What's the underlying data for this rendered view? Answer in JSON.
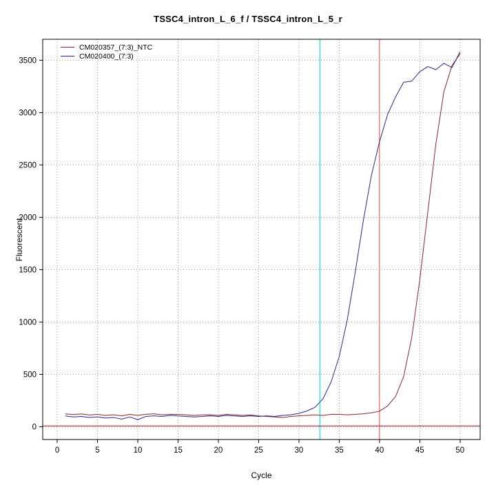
{
  "chart_data": {
    "type": "line",
    "title": "TSSC4_intron_L_6_f / TSSC4_intron_L_5_r",
    "xlabel": "Cycle",
    "ylabel": "Fluorescent",
    "xlim": [
      -1.8,
      52.5
    ],
    "ylim": [
      -120,
      3700
    ],
    "xticks": [
      0,
      5,
      10,
      15,
      20,
      25,
      30,
      35,
      40,
      45,
      50
    ],
    "yticks": [
      0,
      500,
      1000,
      1500,
      2000,
      2500,
      3000,
      3500
    ],
    "grid": true,
    "legend_position": "top-left",
    "x": [
      1,
      2,
      3,
      4,
      5,
      6,
      7,
      8,
      9,
      10,
      11,
      12,
      13,
      14,
      15,
      16,
      17,
      18,
      19,
      20,
      21,
      22,
      23,
      24,
      25,
      26,
      27,
      28,
      29,
      30,
      31,
      32,
      33,
      34,
      35,
      36,
      37,
      38,
      39,
      40,
      41,
      42,
      43,
      44,
      45,
      46,
      47,
      48,
      49,
      50
    ],
    "series": [
      {
        "name": "CM020357_(7:3)_NTC",
        "color": "#8b2323",
        "values": [
          125,
          118,
          124,
          114,
          120,
          110,
          116,
          106,
          120,
          110,
          121,
          126,
          116,
          120,
          120,
          115,
          110,
          115,
          116,
          110,
          120,
          116,
          110,
          114,
          105,
          100,
          95,
          90,
          100,
          106,
          110,
          115,
          110,
          120,
          120,
          116,
          120,
          126,
          135,
          150,
          200,
          290,
          480,
          850,
          1400,
          2050,
          2700,
          3200,
          3450,
          3560
        ]
      },
      {
        "name": "CM020400_(7:3)",
        "color": "#27278b",
        "values": [
          105,
          95,
          100,
          90,
          96,
          85,
          90,
          75,
          95,
          70,
          100,
          106,
          100,
          110,
          105,
          100,
          95,
          100,
          106,
          100,
          110,
          105,
          100,
          106,
          100,
          105,
          100,
          110,
          116,
          130,
          152,
          188,
          270,
          430,
          670,
          1020,
          1480,
          1970,
          2400,
          2720,
          2980,
          3150,
          3290,
          3300,
          3390,
          3440,
          3410,
          3470,
          3430,
          3580
        ]
      }
    ],
    "vlines": [
      {
        "x": 32.6,
        "color": "#00e5ee"
      },
      {
        "x": 40.0,
        "color": "#ff5a5a"
      }
    ],
    "hlines": [
      {
        "y": 10,
        "color": "#8b2323"
      }
    ]
  }
}
